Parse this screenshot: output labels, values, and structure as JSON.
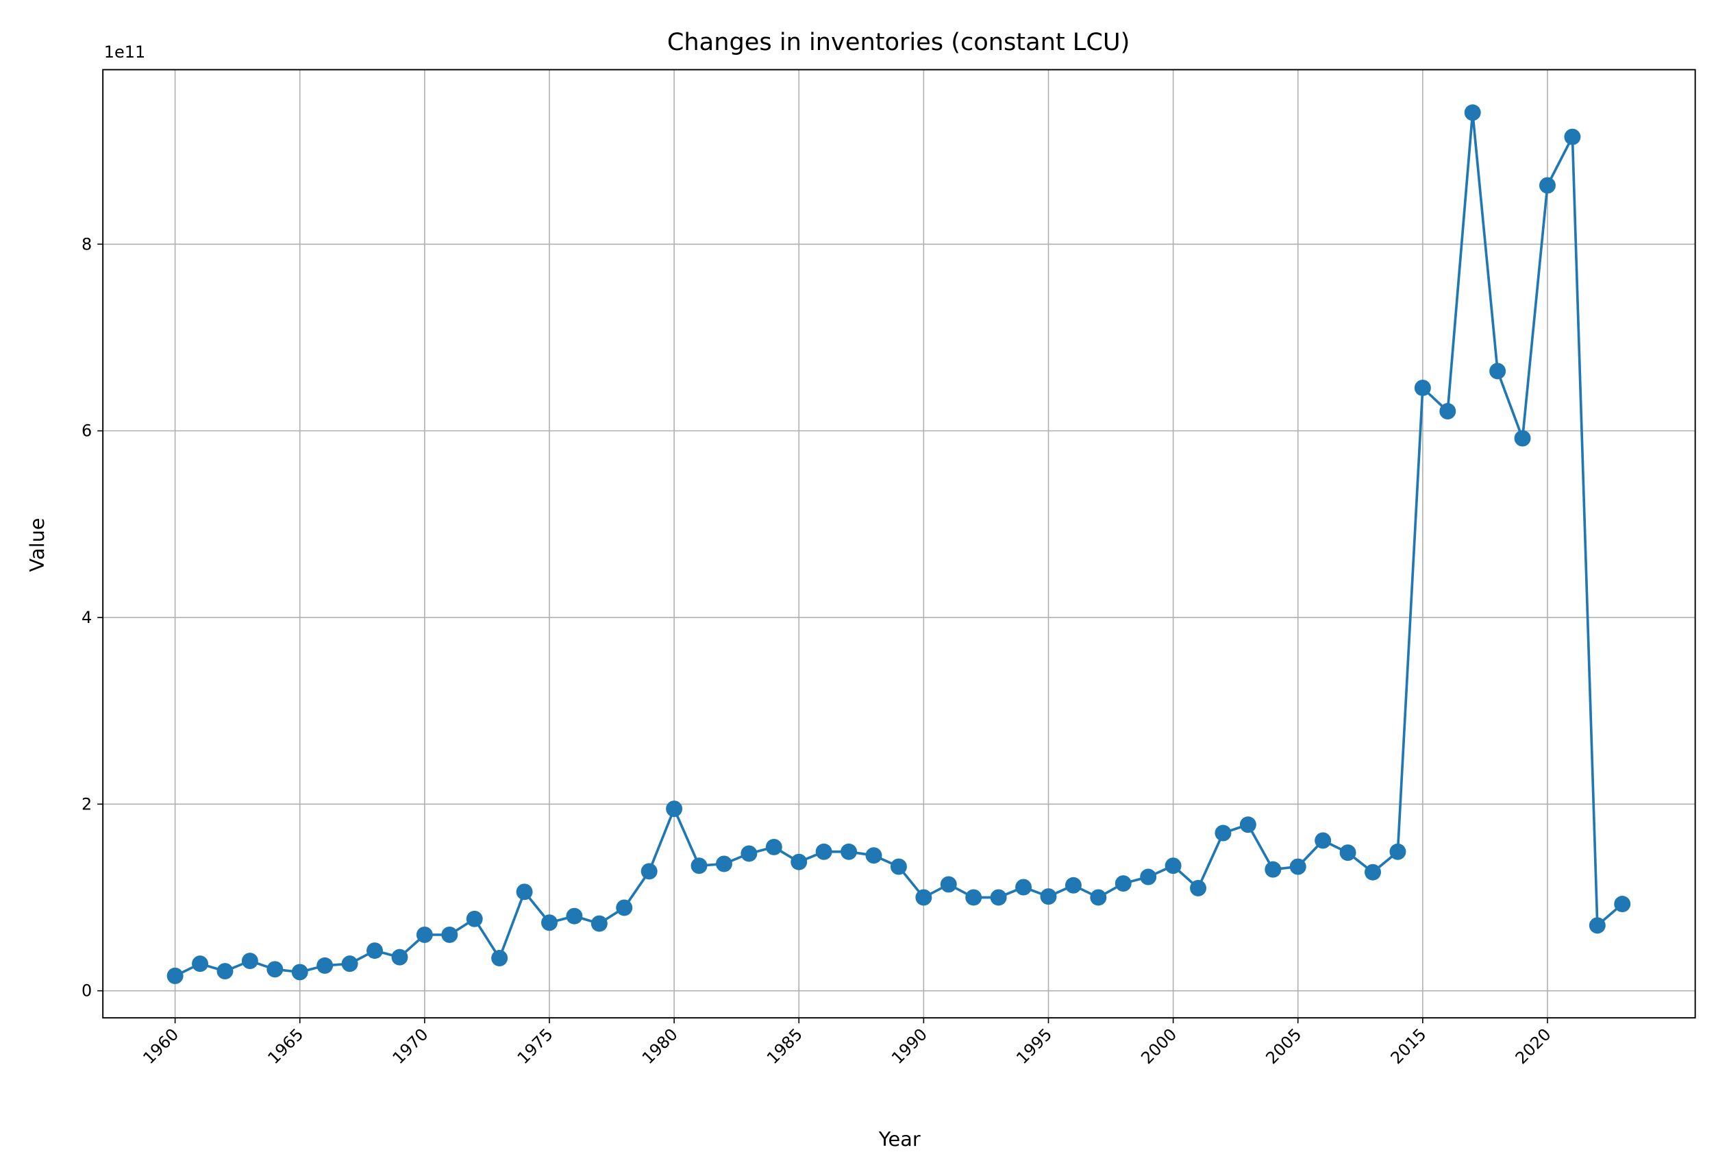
{
  "chart_data": {
    "type": "line",
    "title": "Changes in inventories (constant LCU)",
    "x_label": "Year",
    "y_label": "Value",
    "y_offset_label": "1e11",
    "categories": [
      "1960",
      null,
      null,
      null,
      null,
      "1965",
      null,
      null,
      null,
      null,
      "1970",
      null,
      null,
      null,
      null,
      "1975",
      null,
      null,
      null,
      null,
      "1980",
      null,
      null,
      null,
      null,
      "1985",
      null,
      null,
      null,
      null,
      "1990",
      null,
      null,
      null,
      null,
      "1995",
      null,
      null,
      null,
      null,
      "2000",
      null,
      null,
      null,
      null,
      "2005",
      null,
      null,
      null,
      null,
      "2015",
      null,
      null,
      null,
      null,
      "2020",
      null,
      null,
      null
    ],
    "series": [
      {
        "name": "Changes in inventories",
        "color": "#1f77b4",
        "values": [
          0.16,
          0.29,
          0.21,
          0.32,
          0.23,
          0.2,
          0.27,
          0.29,
          0.43,
          0.36,
          0.6,
          0.6,
          0.77,
          0.35,
          1.06,
          0.73,
          0.8,
          0.72,
          0.89,
          1.28,
          1.95,
          1.34,
          1.36,
          1.47,
          1.54,
          1.38,
          1.49,
          1.49,
          1.45,
          1.33,
          1.0,
          1.14,
          1.0,
          1.0,
          1.11,
          1.01,
          1.13,
          1.0,
          1.15,
          1.22,
          1.34,
          1.1,
          1.69,
          1.78,
          1.3,
          1.33,
          1.61,
          1.48,
          1.27,
          1.49,
          6.46,
          6.21,
          9.41,
          6.64,
          5.92,
          8.63,
          9.15,
          0.7,
          0.93
        ]
      }
    ],
    "ylim": [
      -0.29,
      9.87
    ],
    "yticks": [
      0,
      2,
      4,
      6,
      8
    ],
    "grid": true
  }
}
